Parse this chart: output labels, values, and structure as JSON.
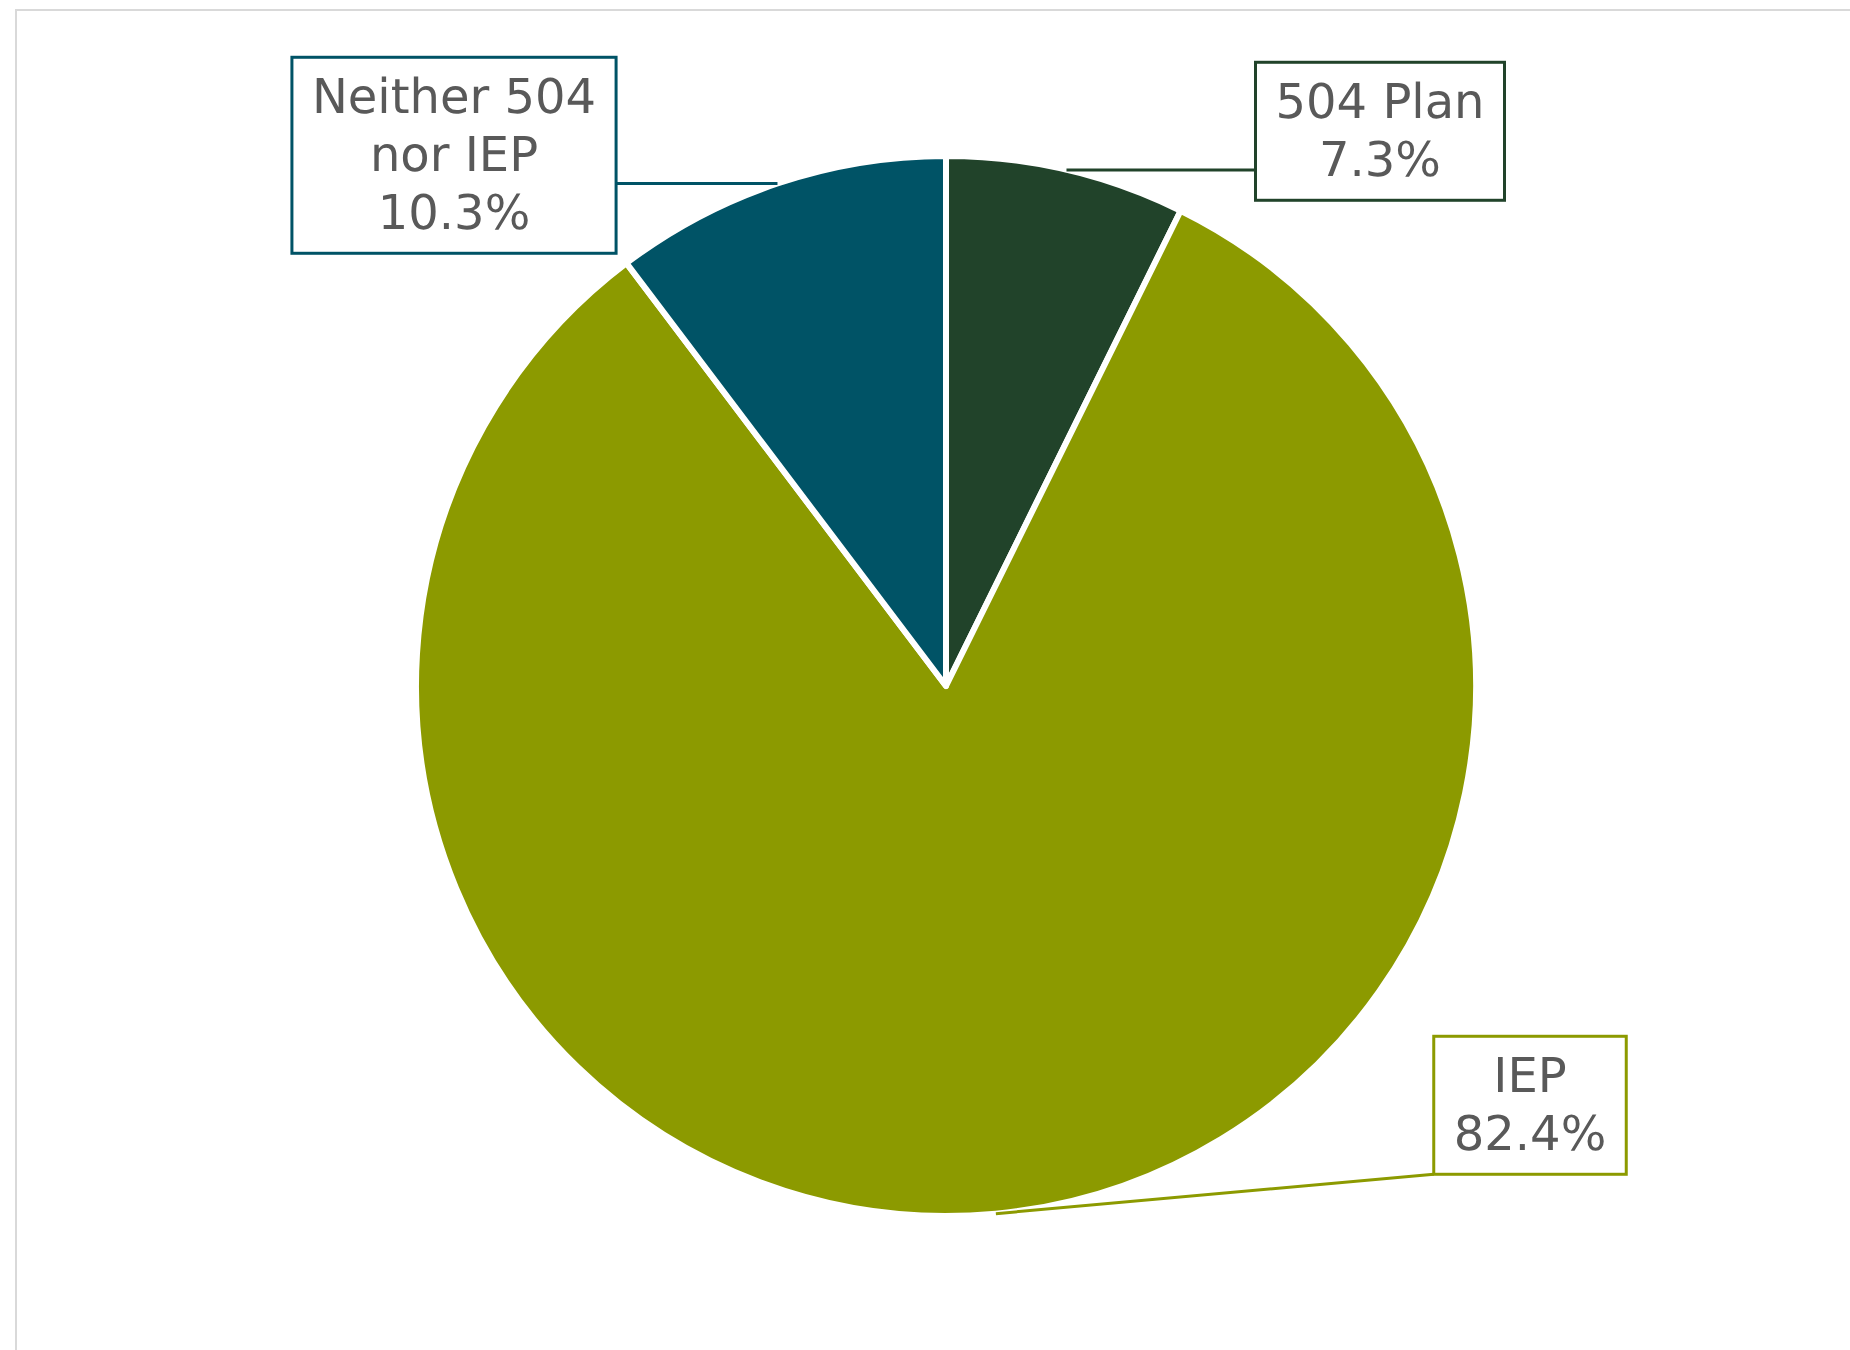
{
  "chart_data": {
    "type": "pie",
    "categories": [
      "504 Plan",
      "IEP",
      "Neither 504 nor IEP"
    ],
    "values": [
      7.3,
      82.4,
      10.3
    ],
    "colors": [
      "#21432a",
      "#8c9a00",
      "#005366"
    ],
    "value_labels": [
      "7.3%",
      "82.4%",
      "10.3%"
    ],
    "legend": false
  }
}
